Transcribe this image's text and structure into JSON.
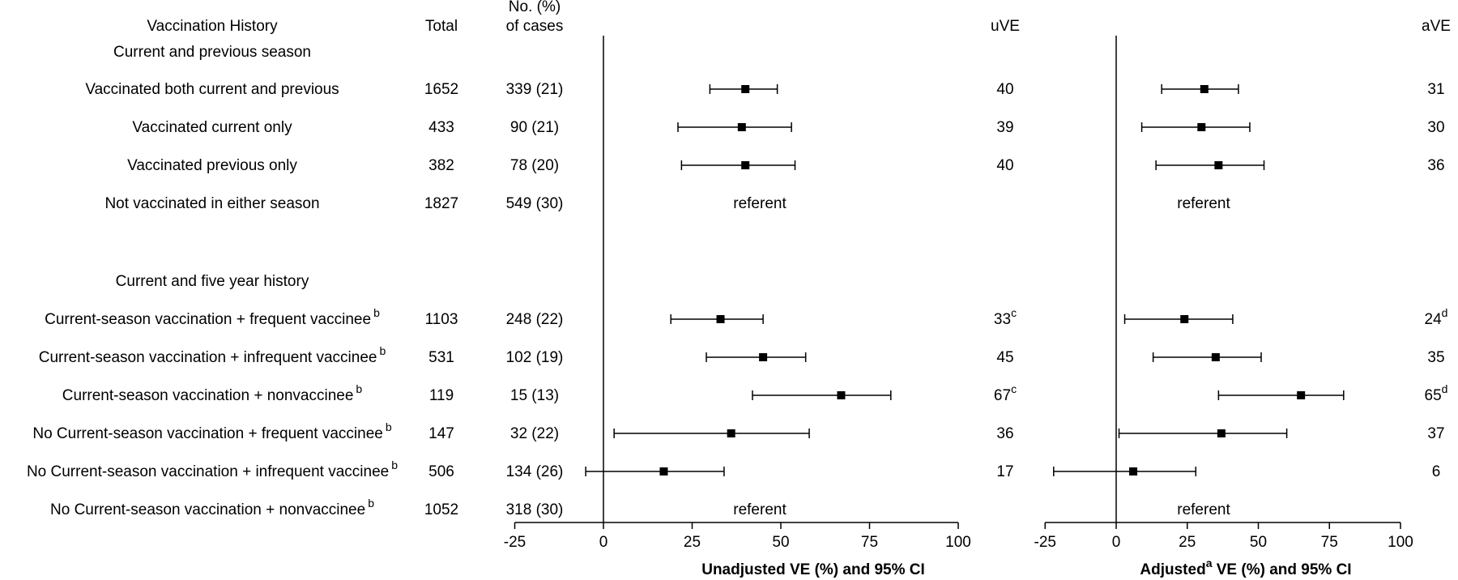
{
  "headers": {
    "history": "Vaccination History",
    "total": "Total",
    "cases_line1": "No. (%)",
    "cases_line2": "of cases",
    "uve": "uVE",
    "ave": "aVE"
  },
  "sections": [
    {
      "title": "Current and previous season"
    },
    {
      "title": "Current and five year history"
    }
  ],
  "rows": [
    {
      "section": 0,
      "label": "Vaccinated both current and previous",
      "label_sup": "",
      "total": "1652",
      "cases": "339 (21)",
      "uve": "40",
      "uve_sup": "",
      "ave": "31",
      "ave_sup": ""
    },
    {
      "section": 0,
      "label": "Vaccinated current only",
      "label_sup": "",
      "total": "433",
      "cases": "90 (21)",
      "uve": "39",
      "uve_sup": "",
      "ave": "30",
      "ave_sup": ""
    },
    {
      "section": 0,
      "label": "Vaccinated previous only",
      "label_sup": "",
      "total": "382",
      "cases": "78 (20)",
      "uve": "40",
      "uve_sup": "",
      "ave": "36",
      "ave_sup": ""
    },
    {
      "section": 0,
      "label": "Not vaccinated in either season",
      "label_sup": "",
      "total": "1827",
      "cases": "549 (30)",
      "uve": "",
      "uve_sup": "",
      "ave": "",
      "ave_sup": "",
      "referent": "referent"
    },
    {
      "section": 1,
      "label": "Current-season   vaccination + frequent vaccinee",
      "label_sup": "b",
      "total": "1103",
      "cases": "248 (22)",
      "uve": "33",
      "uve_sup": "c",
      "ave": "24",
      "ave_sup": "d"
    },
    {
      "section": 1,
      "label": "Current-season  vaccination + infrequent vaccinee",
      "label_sup": "b",
      "total": "531",
      "cases": "102 (19)",
      "uve": "45",
      "uve_sup": "",
      "ave": "35",
      "ave_sup": ""
    },
    {
      "section": 1,
      "label": "Current-season  vaccination + nonvaccinee",
      "label_sup": "b",
      "total": "119",
      "cases": "15 (13)",
      "uve": "67",
      "uve_sup": "c",
      "ave": "65",
      "ave_sup": "d"
    },
    {
      "section": 1,
      "label": "No  Current-season  vaccination + frequent vaccinee",
      "label_sup": "b",
      "total": "147",
      "cases": "32 (22)",
      "uve": "36",
      "uve_sup": "",
      "ave": "37",
      "ave_sup": ""
    },
    {
      "section": 1,
      "label": "No  Current-season  vaccination + infrequent vaccinee",
      "label_sup": "b",
      "total": "506",
      "cases": "134 (26)",
      "uve": "17",
      "uve_sup": "",
      "ave": "6",
      "ave_sup": ""
    },
    {
      "section": 1,
      "label": "No  Current-season  vaccination + nonvaccinee",
      "label_sup": "b",
      "total": "1052",
      "cases": "318 (30)",
      "uve": "",
      "uve_sup": "",
      "ave": "",
      "ave_sup": "",
      "referent": "referent"
    }
  ],
  "chart_data": [
    {
      "type": "scatter",
      "xlabel": "Unadjusted VE (%) and 95% CI",
      "xlabel_sup": "",
      "xlim": [
        -25,
        100
      ],
      "ticks": [
        -25,
        0,
        25,
        50,
        75,
        100
      ],
      "tick_labels": [
        "-25",
        "0",
        "25",
        "50",
        "75",
        "100"
      ],
      "reference_line": 0,
      "points": [
        {
          "estimate": 40,
          "low": 30,
          "high": 49
        },
        {
          "estimate": 39,
          "low": 21,
          "high": 53
        },
        {
          "estimate": 40,
          "low": 22,
          "high": 54
        },
        {
          "referent": "referent"
        },
        {
          "estimate": 33,
          "low": 19,
          "high": 45
        },
        {
          "estimate": 45,
          "low": 29,
          "high": 57
        },
        {
          "estimate": 67,
          "low": 42,
          "high": 81
        },
        {
          "estimate": 36,
          "low": 3,
          "high": 58
        },
        {
          "estimate": 17,
          "low": -5,
          "high": 34
        },
        {
          "referent": "referent"
        }
      ]
    },
    {
      "type": "scatter",
      "xlabel": "Adjusted",
      "xlabel_sup": "a",
      "xlabel_rest": " VE (%) and 95% CI",
      "xlim": [
        -25,
        100
      ],
      "ticks": [
        -25,
        0,
        25,
        50,
        75,
        100
      ],
      "tick_labels": [
        "-25",
        "0",
        "25",
        "50",
        "75",
        "100"
      ],
      "reference_line": 0,
      "points": [
        {
          "estimate": 31,
          "low": 16,
          "high": 43
        },
        {
          "estimate": 30,
          "low": 9,
          "high": 47
        },
        {
          "estimate": 36,
          "low": 14,
          "high": 52
        },
        {
          "referent": "referent"
        },
        {
          "estimate": 24,
          "low": 3,
          "high": 41
        },
        {
          "estimate": 35,
          "low": 13,
          "high": 51
        },
        {
          "estimate": 65,
          "low": 36,
          "high": 80
        },
        {
          "estimate": 37,
          "low": 1,
          "high": 60
        },
        {
          "estimate": 6,
          "low": -22,
          "high": 28
        },
        {
          "referent": "referent"
        }
      ]
    }
  ]
}
